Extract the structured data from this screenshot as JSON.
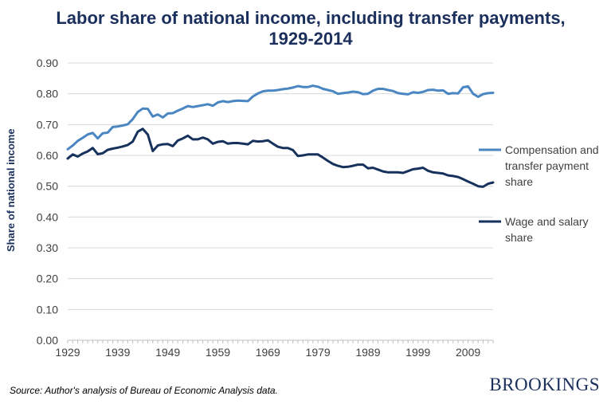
{
  "colors": {
    "title": "#1b2f5c",
    "compensation": "#4a86c2",
    "wage": "#16325c",
    "grid": "#d9d9d9",
    "axis": "#404040"
  },
  "source_text": "Source: Author's analysis of Bureau of Economic Analysis data.",
  "brand_text": "BROOKINGS",
  "chart_data": {
    "type": "line",
    "title": "Labor share of national income, including transfer payments, 1929-2014",
    "xlabel": "",
    "ylabel": "Share of national income",
    "xlim": [
      1929,
      2014
    ],
    "ylim": [
      0,
      0.9
    ],
    "x_ticks": [
      "1929",
      "1939",
      "1949",
      "1959",
      "1969",
      "1979",
      "1989",
      "1999",
      "2009"
    ],
    "y_ticks": [
      "0.00",
      "0.10",
      "0.20",
      "0.30",
      "0.40",
      "0.50",
      "0.60",
      "0.70",
      "0.80",
      "0.90"
    ],
    "grid": true,
    "legend": "right",
    "x": [
      1929,
      1930,
      1931,
      1932,
      1933,
      1934,
      1935,
      1936,
      1937,
      1938,
      1939,
      1940,
      1941,
      1942,
      1943,
      1944,
      1945,
      1946,
      1947,
      1948,
      1949,
      1950,
      1951,
      1952,
      1953,
      1954,
      1955,
      1956,
      1957,
      1958,
      1959,
      1960,
      1961,
      1962,
      1963,
      1964,
      1965,
      1966,
      1967,
      1968,
      1969,
      1970,
      1971,
      1972,
      1973,
      1974,
      1975,
      1976,
      1977,
      1978,
      1979,
      1980,
      1981,
      1982,
      1983,
      1984,
      1985,
      1986,
      1987,
      1988,
      1989,
      1990,
      1991,
      1992,
      1993,
      1994,
      1995,
      1996,
      1997,
      1998,
      1999,
      2000,
      2001,
      2002,
      2003,
      2004,
      2005,
      2006,
      2007,
      2008,
      2009,
      2010,
      2011,
      2012,
      2013,
      2014
    ],
    "series": [
      {
        "name": "Compensation and transfer payment share",
        "values": [
          0.62,
          0.632,
          0.647,
          0.657,
          0.668,
          0.673,
          0.655,
          0.672,
          0.674,
          0.692,
          0.694,
          0.697,
          0.701,
          0.718,
          0.741,
          0.752,
          0.751,
          0.726,
          0.733,
          0.723,
          0.736,
          0.737,
          0.745,
          0.752,
          0.76,
          0.757,
          0.76,
          0.763,
          0.766,
          0.761,
          0.772,
          0.776,
          0.773,
          0.776,
          0.778,
          0.777,
          0.776,
          0.791,
          0.801,
          0.808,
          0.81,
          0.81,
          0.812,
          0.815,
          0.817,
          0.82,
          0.825,
          0.822,
          0.822,
          0.826,
          0.823,
          0.816,
          0.812,
          0.808,
          0.8,
          0.802,
          0.804,
          0.807,
          0.805,
          0.799,
          0.8,
          0.81,
          0.816,
          0.816,
          0.812,
          0.809,
          0.802,
          0.8,
          0.798,
          0.805,
          0.803,
          0.806,
          0.812,
          0.813,
          0.81,
          0.811,
          0.8,
          0.802,
          0.801,
          0.821,
          0.824,
          0.8,
          0.79,
          0.799,
          0.802,
          0.803
        ]
      },
      {
        "name": "Wage and salary share",
        "values": [
          0.59,
          0.603,
          0.596,
          0.606,
          0.613,
          0.624,
          0.604,
          0.607,
          0.618,
          0.622,
          0.625,
          0.629,
          0.634,
          0.645,
          0.677,
          0.686,
          0.668,
          0.614,
          0.632,
          0.636,
          0.637,
          0.63,
          0.648,
          0.655,
          0.664,
          0.652,
          0.652,
          0.658,
          0.652,
          0.638,
          0.644,
          0.646,
          0.638,
          0.64,
          0.64,
          0.638,
          0.636,
          0.647,
          0.645,
          0.646,
          0.649,
          0.638,
          0.628,
          0.624,
          0.624,
          0.617,
          0.598,
          0.6,
          0.603,
          0.603,
          0.603,
          0.593,
          0.582,
          0.572,
          0.566,
          0.562,
          0.563,
          0.566,
          0.57,
          0.57,
          0.558,
          0.56,
          0.554,
          0.548,
          0.545,
          0.545,
          0.545,
          0.543,
          0.549,
          0.555,
          0.557,
          0.56,
          0.55,
          0.545,
          0.543,
          0.541,
          0.535,
          0.533,
          0.53,
          0.523,
          0.515,
          0.508,
          0.5,
          0.498,
          0.508,
          0.512
        ]
      }
    ]
  }
}
